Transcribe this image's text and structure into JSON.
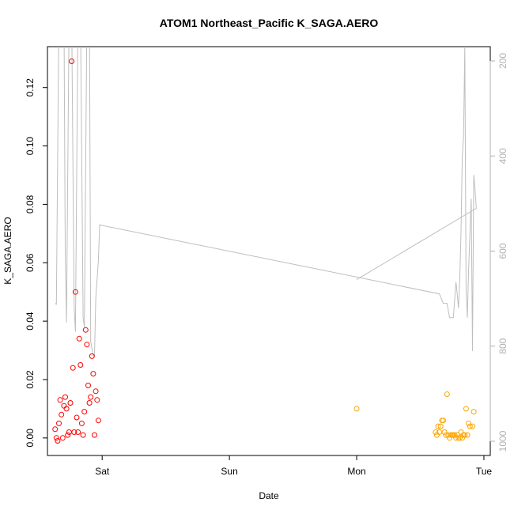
{
  "chart_data": {
    "type": "scatter",
    "title": "ATOM1 Northeast_Pacific K_SAGA.AERO",
    "xlabel": "Date",
    "ylabel": "K_SAGA.AERO",
    "x_ticks": [
      "Sat",
      "Sun",
      "Mon",
      "Tue"
    ],
    "x_range_days": [
      -0.43,
      3.05
    ],
    "ylim": [
      -0.006,
      0.134
    ],
    "y_ticks": [
      0.0,
      0.02,
      0.04,
      0.06,
      0.08,
      0.1,
      0.12
    ],
    "y_tick_labels": [
      "0.00",
      "0.02",
      "0.04",
      "0.06",
      "0.08",
      "0.10",
      "0.12"
    ],
    "y2_ticks": [
      200,
      400,
      600,
      800,
      1000
    ],
    "y2_tick_labels": [
      "200",
      "400",
      "600",
      "800",
      "1000"
    ],
    "y2_range": [
      1030,
      170
    ],
    "y2_reversed": true,
    "grid": false,
    "colors": {
      "series_red": "#ff0000",
      "series_orange": "#ffa500",
      "pressure_line": "#bebebe",
      "right_axis": "#b0b0b0"
    },
    "series": [
      {
        "color": "red",
        "points": [
          [
            -0.37,
            0.003
          ],
          [
            -0.36,
            0.0
          ],
          [
            -0.35,
            -0.001
          ],
          [
            -0.34,
            0.005
          ],
          [
            -0.33,
            0.013
          ],
          [
            -0.32,
            0.008
          ],
          [
            -0.31,
            0.0
          ],
          [
            -0.3,
            0.011
          ],
          [
            -0.29,
            0.014
          ],
          [
            -0.28,
            0.01
          ],
          [
            -0.27,
            0.001
          ],
          [
            -0.26,
            0.002
          ],
          [
            -0.25,
            0.012
          ],
          [
            -0.24,
            0.129
          ],
          [
            -0.23,
            0.024
          ],
          [
            -0.22,
            0.002
          ],
          [
            -0.21,
            0.05
          ],
          [
            -0.2,
            0.007
          ],
          [
            -0.19,
            0.002
          ],
          [
            -0.18,
            0.034
          ],
          [
            -0.17,
            0.025
          ],
          [
            -0.16,
            0.005
          ],
          [
            -0.15,
            0.001
          ],
          [
            -0.14,
            0.009
          ],
          [
            -0.13,
            0.037
          ],
          [
            -0.12,
            0.032
          ],
          [
            -0.11,
            0.018
          ],
          [
            -0.1,
            0.012
          ],
          [
            -0.09,
            0.014
          ],
          [
            -0.08,
            0.028
          ],
          [
            -0.07,
            0.022
          ],
          [
            -0.06,
            0.001
          ],
          [
            -0.05,
            0.016
          ],
          [
            -0.04,
            0.013
          ],
          [
            -0.03,
            0.006
          ]
        ]
      },
      {
        "color": "orange",
        "points": [
          [
            2.0,
            0.01
          ],
          [
            2.62,
            0.002
          ],
          [
            2.63,
            0.001
          ],
          [
            2.64,
            0.004
          ],
          [
            2.65,
            0.002
          ],
          [
            2.66,
            0.004
          ],
          [
            2.67,
            0.006
          ],
          [
            2.68,
            0.006
          ],
          [
            2.69,
            0.002
          ],
          [
            2.7,
            0.001
          ],
          [
            2.71,
            0.015
          ],
          [
            2.72,
            0.001
          ],
          [
            2.73,
            0.0
          ],
          [
            2.74,
            0.001
          ],
          [
            2.75,
            0.001
          ],
          [
            2.76,
            0.001
          ],
          [
            2.77,
            0.001
          ],
          [
            2.78,
            0.0
          ],
          [
            2.79,
            0.001
          ],
          [
            2.8,
            0.0
          ],
          [
            2.81,
            0.0
          ],
          [
            2.82,
            0.002
          ],
          [
            2.83,
            0.0
          ],
          [
            2.84,
            0.001
          ],
          [
            2.85,
            0.001
          ],
          [
            2.86,
            0.01
          ],
          [
            2.87,
            0.001
          ],
          [
            2.88,
            0.005
          ],
          [
            2.89,
            0.004
          ],
          [
            2.91,
            0.004
          ],
          [
            2.92,
            0.009
          ]
        ]
      }
    ],
    "pressure_line": [
      [
        -0.37,
        710
      ],
      [
        -0.36,
        712
      ],
      [
        -0.34,
        100
      ],
      [
        -0.3,
        100
      ],
      [
        -0.29,
        600
      ],
      [
        -0.28,
        750
      ],
      [
        -0.26,
        100
      ],
      [
        -0.24,
        100
      ],
      [
        -0.22,
        720
      ],
      [
        -0.21,
        770
      ],
      [
        -0.19,
        100
      ],
      [
        -0.17,
        100
      ],
      [
        -0.15,
        740
      ],
      [
        -0.14,
        760
      ],
      [
        -0.12,
        100
      ],
      [
        -0.1,
        100
      ],
      [
        -0.09,
        790
      ],
      [
        -0.07,
        820
      ],
      [
        -0.06,
        820
      ],
      [
        -0.05,
        700
      ],
      [
        -0.03,
        620
      ],
      [
        -0.02,
        545
      ],
      [
        2.65,
        690
      ],
      [
        2.68,
        710
      ],
      [
        2.71,
        710
      ],
      [
        2.73,
        740
      ],
      [
        2.76,
        740
      ],
      [
        2.78,
        665
      ],
      [
        2.79,
        690
      ],
      [
        2.8,
        720
      ],
      [
        2.81,
        660
      ],
      [
        2.82,
        560
      ],
      [
        2.83,
        400
      ],
      [
        2.84,
        360
      ],
      [
        2.85,
        170
      ],
      [
        2.86,
        680
      ],
      [
        2.87,
        740
      ],
      [
        2.88,
        640
      ],
      [
        2.89,
        560
      ],
      [
        2.9,
        490
      ],
      [
        2.91,
        810
      ],
      [
        2.92,
        440
      ],
      [
        2.93,
        470
      ],
      [
        2.94,
        510
      ],
      [
        2.0,
        660
      ]
    ]
  }
}
